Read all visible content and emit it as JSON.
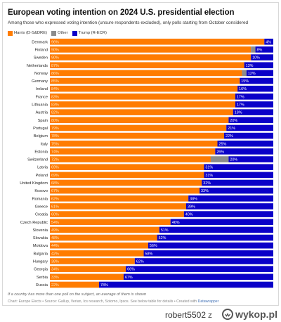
{
  "header": {
    "title": "European voting intention on 2024 U.S. presidential election",
    "subtitle": "Among those who expressed voting intention (unsure respondents excluded), only polls starting from October considered"
  },
  "legend": {
    "items": [
      {
        "label": "Harris (D-S&DRE)",
        "color": "#ff7c00"
      },
      {
        "label": "Other",
        "color": "#8c8c8c"
      },
      {
        "label": "Trump (R-ECR)",
        "color": "#0b00c8"
      }
    ]
  },
  "chart_data": {
    "type": "bar",
    "orientation": "horizontal",
    "stacked": true,
    "title": "European voting intention on 2024 U.S. presidential election",
    "subtitle": "Among those who expressed voting intention (unsure respondents excluded), only polls starting from October considered",
    "xlim": [
      0,
      100
    ],
    "legend_position": "top-left",
    "grid": false,
    "categories": [
      "Denmark",
      "Finland",
      "Sweden",
      "Netherlands",
      "Norway",
      "Germany",
      "Ireland",
      "France",
      "Lithuania",
      "Austria",
      "Spain",
      "Portugal",
      "Belgium",
      "Italy",
      "Estonia",
      "Switzerland",
      "Latvia",
      "Poland",
      "United Kingdom",
      "Kosovo",
      "Romania",
      "Greece",
      "Croatia",
      "Czech Republic",
      "Slovenia",
      "Slovakia",
      "Moldova",
      "Bulgaria",
      "Hungary",
      "Georgia",
      "Serbia",
      "Russia"
    ],
    "series": [
      {
        "name": "Harris (D-S&DRE)",
        "color": "#ff7c00",
        "values": [
          96,
          90,
          90,
          87,
          86,
          85,
          84,
          83,
          83,
          82,
          80,
          79,
          78,
          75,
          74,
          72,
          69,
          69,
          68,
          67,
          62,
          61,
          60,
          54,
          49,
          48,
          44,
          42,
          38,
          34,
          33,
          22
        ]
      },
      {
        "name": "Other",
        "color": "#8c8c8c",
        "values": [
          0,
          2,
          0,
          0,
          2,
          0,
          0,
          0,
          0,
          0,
          0,
          0,
          0,
          0,
          0,
          8,
          0,
          0,
          0,
          0,
          0,
          0,
          0,
          0,
          0,
          0,
          0,
          0,
          0,
          0,
          0,
          0
        ]
      },
      {
        "name": "Trump (R-ECR)",
        "color": "#0b00c8",
        "values": [
          4,
          8,
          10,
          13,
          12,
          15,
          16,
          17,
          17,
          18,
          20,
          21,
          22,
          25,
          26,
          20,
          31,
          31,
          32,
          33,
          38,
          39,
          40,
          46,
          51,
          52,
          56,
          58,
          62,
          66,
          67,
          78
        ]
      }
    ]
  },
  "footer": {
    "note": "If a country has more than one poll on the subject, an average of them is shown",
    "credit_prefix": "Chart: Europe Elects • Source: Gallup, Verian, Ics research, Sotomo, Ipsos. See below table for details • Created with ",
    "credit_tool": "Datawrapper"
  },
  "watermark": {
    "author": "robert5502",
    "separator": "z",
    "site": "wykop.pl"
  }
}
